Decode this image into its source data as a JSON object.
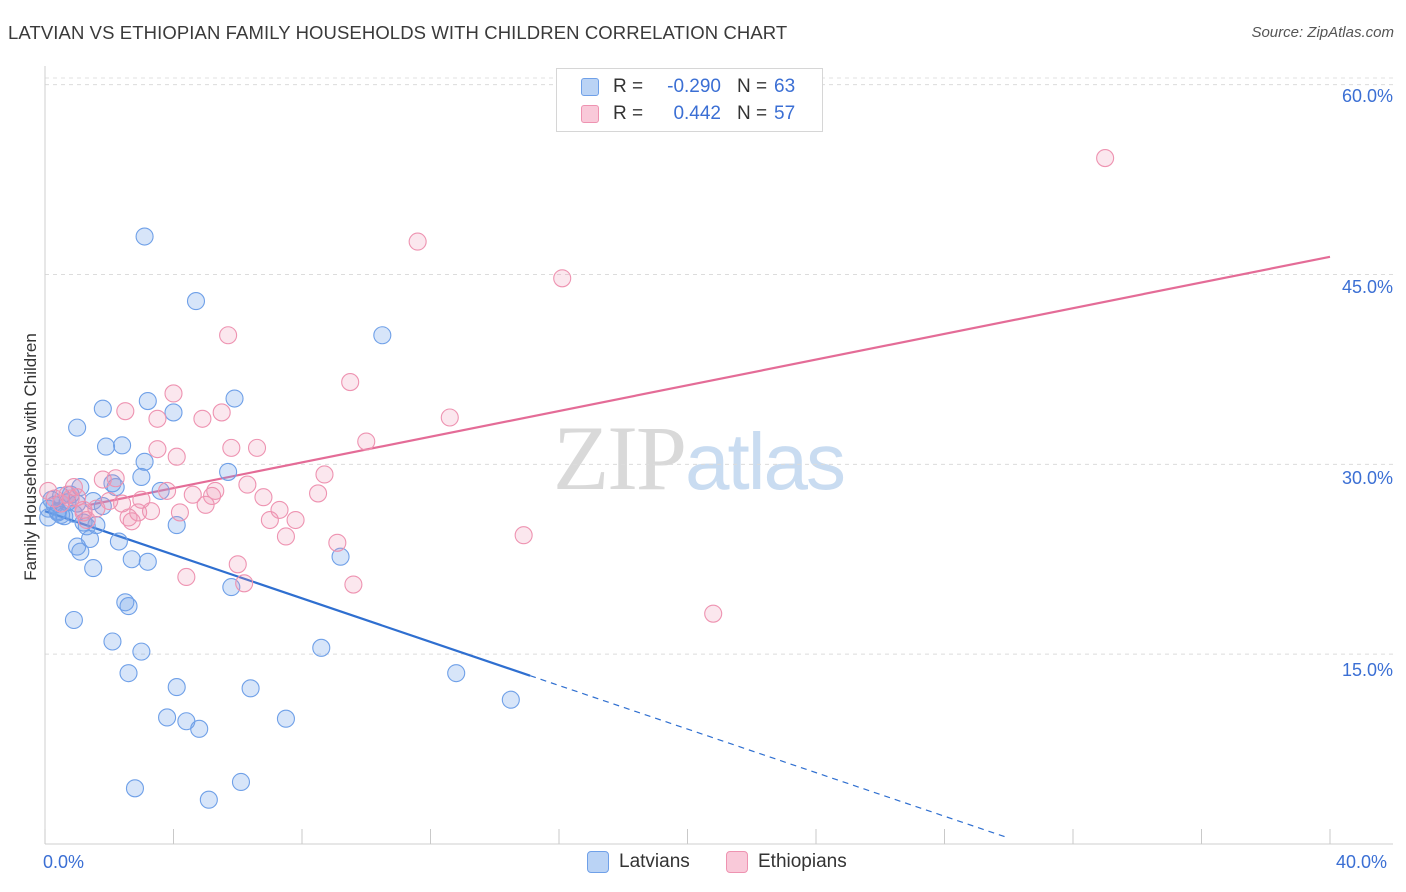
{
  "title": "LATVIAN VS ETHIOPIAN FAMILY HOUSEHOLDS WITH CHILDREN CORRELATION CHART",
  "source": "Source: ZipAtlas.com",
  "watermark": {
    "zip": "ZIP",
    "atlas": "atlas"
  },
  "legend": {
    "rows": [
      {
        "r_label": "R =",
        "r_value": "-0.290",
        "n_label": "N =",
        "n_value": "63",
        "color": "#6fa0e8"
      },
      {
        "r_label": "R =",
        "r_value": "0.442",
        "n_label": "N =",
        "n_value": "57",
        "color": "#ee93b1"
      }
    ]
  },
  "bottom_legend": [
    "Latvians",
    "Ethiopians"
  ],
  "chart_data": {
    "type": "scatter",
    "title": "LATVIAN VS ETHIOPIAN FAMILY HOUSEHOLDS WITH CHILDREN CORRELATION CHART",
    "xlabel": "",
    "ylabel": "Family Households with Children",
    "xlim": [
      0,
      40
    ],
    "ylim": [
      0,
      61
    ],
    "x_tick_labels": [
      "0.0%",
      "40.0%"
    ],
    "y_ticks": [
      15,
      30,
      45,
      60
    ],
    "y_tick_labels": [
      "15.0%",
      "30.0%",
      "45.0%",
      "60.0%"
    ],
    "grid": true,
    "series": [
      {
        "name": "Latvians",
        "color": "#6fa0e8",
        "line_color": "#2f6fd0",
        "r": -0.29,
        "n": 63,
        "trend": {
          "x0": 0.0,
          "y0": 26.3,
          "x1": 15.1,
          "y1": 13.3,
          "dash_to_x": 30.0
        },
        "points": [
          [
            0.1,
            26.5
          ],
          [
            0.1,
            25.8
          ],
          [
            0.2,
            27.2
          ],
          [
            0.3,
            26.8
          ],
          [
            0.4,
            26.2
          ],
          [
            0.5,
            27.5
          ],
          [
            0.5,
            26.0
          ],
          [
            0.6,
            25.9
          ],
          [
            0.7,
            27.0
          ],
          [
            0.8,
            27.6
          ],
          [
            0.9,
            26.1
          ],
          [
            1.0,
            26.9
          ],
          [
            1.1,
            28.2
          ],
          [
            1.2,
            25.4
          ],
          [
            1.3,
            25.1
          ],
          [
            1.4,
            24.1
          ],
          [
            1.5,
            27.1
          ],
          [
            1.6,
            25.2
          ],
          [
            1.8,
            26.7
          ],
          [
            2.1,
            28.5
          ],
          [
            2.2,
            28.2
          ],
          [
            2.3,
            23.9
          ],
          [
            2.4,
            31.5
          ],
          [
            1.0,
            23.5
          ],
          [
            1.1,
            23.1
          ],
          [
            1.5,
            21.8
          ],
          [
            2.6,
            18.8
          ],
          [
            2.5,
            19.1
          ],
          [
            0.9,
            17.7
          ],
          [
            2.1,
            16.0
          ],
          [
            3.0,
            15.2
          ],
          [
            2.6,
            13.5
          ],
          [
            4.1,
            12.4
          ],
          [
            3.8,
            10.0
          ],
          [
            4.4,
            9.7
          ],
          [
            4.8,
            9.1
          ],
          [
            6.4,
            12.3
          ],
          [
            7.5,
            9.9
          ],
          [
            2.8,
            4.4
          ],
          [
            5.1,
            3.5
          ],
          [
            6.1,
            4.9
          ],
          [
            3.1,
            48.0
          ],
          [
            4.7,
            42.9
          ],
          [
            10.5,
            40.2
          ],
          [
            3.2,
            35.0
          ],
          [
            5.9,
            35.2
          ],
          [
            1.8,
            34.4
          ],
          [
            4.0,
            34.1
          ],
          [
            1.0,
            32.9
          ],
          [
            1.9,
            31.4
          ],
          [
            3.1,
            30.2
          ],
          [
            3.0,
            29.0
          ],
          [
            5.7,
            29.4
          ],
          [
            3.6,
            27.9
          ],
          [
            4.1,
            25.2
          ],
          [
            3.2,
            22.3
          ],
          [
            2.7,
            22.5
          ],
          [
            5.8,
            20.3
          ],
          [
            9.2,
            22.7
          ],
          [
            8.6,
            15.5
          ],
          [
            12.8,
            13.5
          ],
          [
            14.5,
            11.4
          ],
          [
            0.4,
            26.3
          ]
        ]
      },
      {
        "name": "Ethiopians",
        "color": "#ee93b1",
        "line_color": "#e46c97",
        "r": 0.442,
        "n": 57,
        "trend": {
          "x0": 1.4,
          "y0": 26.8,
          "x1": 40.0,
          "y1": 46.4
        },
        "points": [
          [
            0.1,
            27.9
          ],
          [
            0.3,
            27.3
          ],
          [
            0.5,
            26.9
          ],
          [
            0.7,
            27.6
          ],
          [
            0.9,
            28.2
          ],
          [
            1.0,
            27.4
          ],
          [
            1.2,
            26.2
          ],
          [
            1.3,
            25.6
          ],
          [
            1.6,
            26.5
          ],
          [
            1.8,
            28.8
          ],
          [
            2.0,
            27.1
          ],
          [
            2.2,
            28.9
          ],
          [
            2.4,
            26.9
          ],
          [
            2.6,
            25.8
          ],
          [
            2.7,
            25.5
          ],
          [
            3.0,
            27.2
          ],
          [
            3.3,
            26.3
          ],
          [
            3.5,
            31.2
          ],
          [
            3.8,
            27.9
          ],
          [
            4.0,
            35.6
          ],
          [
            4.1,
            30.6
          ],
          [
            4.2,
            26.2
          ],
          [
            4.4,
            21.1
          ],
          [
            4.6,
            27.6
          ],
          [
            4.9,
            33.6
          ],
          [
            5.0,
            26.8
          ],
          [
            5.2,
            27.5
          ],
          [
            5.3,
            27.9
          ],
          [
            5.5,
            34.1
          ],
          [
            5.7,
            40.2
          ],
          [
            5.8,
            31.3
          ],
          [
            6.0,
            22.1
          ],
          [
            6.2,
            20.6
          ],
          [
            6.3,
            28.4
          ],
          [
            6.6,
            31.3
          ],
          [
            6.8,
            27.4
          ],
          [
            7.0,
            25.6
          ],
          [
            7.3,
            26.4
          ],
          [
            7.5,
            24.3
          ],
          [
            7.8,
            25.6
          ],
          [
            8.5,
            27.7
          ],
          [
            8.7,
            29.2
          ],
          [
            9.1,
            23.8
          ],
          [
            9.5,
            36.5
          ],
          [
            9.6,
            20.5
          ],
          [
            10.0,
            31.8
          ],
          [
            2.5,
            34.2
          ],
          [
            3.5,
            33.6
          ],
          [
            11.6,
            47.6
          ],
          [
            12.6,
            33.7
          ],
          [
            14.9,
            24.4
          ],
          [
            16.1,
            44.7
          ],
          [
            20.8,
            18.2
          ],
          [
            33.0,
            54.2
          ],
          [
            1.2,
            26.4
          ],
          [
            0.8,
            27.3
          ],
          [
            2.9,
            26.2
          ]
        ]
      }
    ]
  }
}
